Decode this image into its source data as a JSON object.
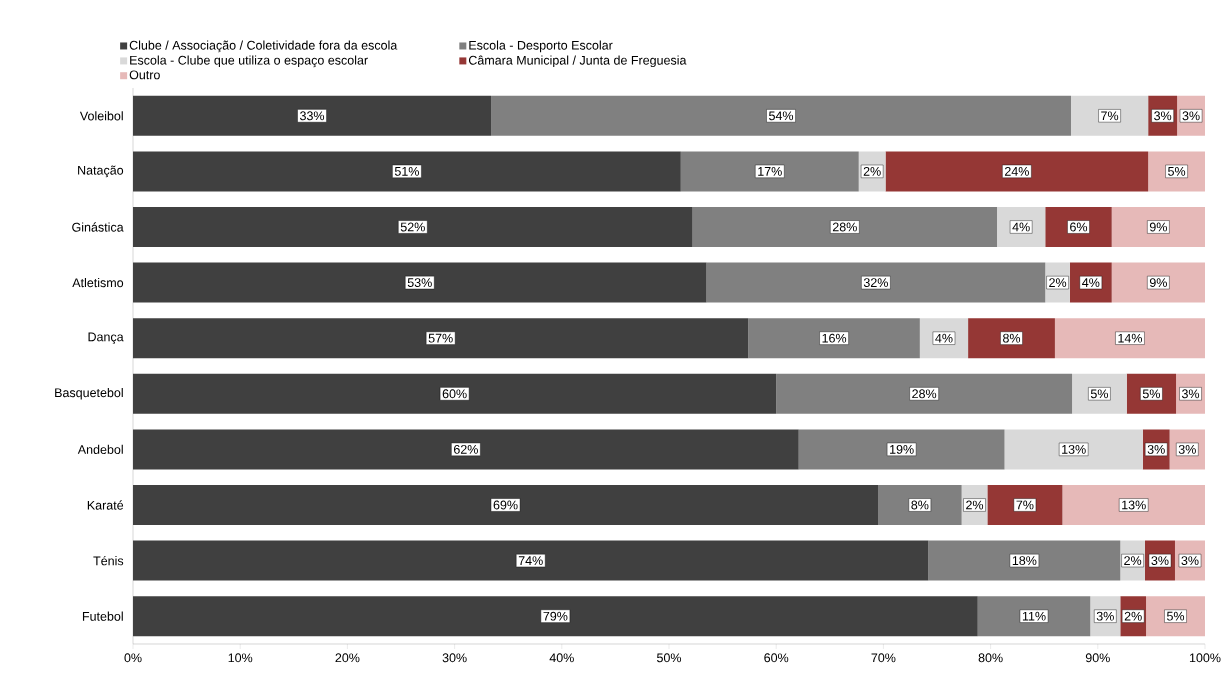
{
  "chart_data": {
    "type": "bar",
    "orientation": "horizontal",
    "stacked": true,
    "legend": "top",
    "categories": [
      "Voleibol",
      "Natação",
      "Ginástica",
      "Atletismo",
      "Dança",
      "Basquetebol",
      "Andebol",
      "Karaté",
      "Ténis",
      "Futebol"
    ],
    "series": [
      {
        "name": "Clube / Associação / Coletividade fora da escola",
        "color": "#404040",
        "values": [
          33.4,
          51.1,
          52.2,
          53.5,
          57.4,
          60.0,
          62.1,
          69.5,
          74.2,
          78.8
        ],
        "value_labels": [
          "33%",
          "51%",
          "52%",
          "53%",
          "57%",
          "60%",
          "62%",
          "69%",
          "74%",
          "79%"
        ]
      },
      {
        "name": "Escola - Desporto Escolar",
        "color": "#808080",
        "values": [
          54.1,
          16.6,
          28.4,
          31.6,
          16.0,
          27.6,
          19.2,
          7.8,
          17.9,
          10.5
        ],
        "value_labels": [
          "54%",
          "17%",
          "28%",
          "32%",
          "16%",
          "28%",
          "19%",
          "8%",
          "18%",
          "11%"
        ]
      },
      {
        "name": "Escola - Clube que utiliza o espaço escolar",
        "color": "#d9d9d9",
        "values": [
          7.2,
          2.5,
          4.5,
          2.3,
          4.5,
          5.1,
          12.9,
          2.4,
          2.3,
          2.8
        ],
        "value_labels": [
          "7%",
          "2%",
          "4%",
          "2%",
          "4%",
          "5%",
          "13%",
          "2%",
          "2%",
          "3%"
        ]
      },
      {
        "name": "Câmara Municipal / Junta de Freguesia",
        "color": "#953735",
        "values": [
          2.7,
          24.5,
          6.2,
          3.9,
          8.1,
          4.6,
          2.5,
          7.0,
          2.8,
          2.4
        ],
        "value_labels": [
          "3%",
          "24%",
          "6%",
          "4%",
          "8%",
          "5%",
          "3%",
          "7%",
          "3%",
          "2%"
        ]
      },
      {
        "name": "Outro",
        "color": "#e6b9b8",
        "values": [
          2.6,
          5.3,
          8.7,
          8.7,
          14.0,
          2.7,
          3.3,
          13.3,
          2.8,
          5.5
        ],
        "value_labels": [
          "3%",
          "5%",
          "9%",
          "9%",
          "14%",
          "3%",
          "3%",
          "13%",
          "3%",
          "5%"
        ]
      }
    ],
    "xlim": [
      0,
      100
    ],
    "xticks": [
      {
        "value": 0,
        "label": "0%"
      },
      {
        "value": 10,
        "label": "10%"
      },
      {
        "value": 20,
        "label": "20%"
      },
      {
        "value": 30,
        "label": "30%"
      },
      {
        "value": 40,
        "label": "40%"
      },
      {
        "value": 50,
        "label": "50%"
      },
      {
        "value": 60,
        "label": "60%"
      },
      {
        "value": 70,
        "label": "70%"
      },
      {
        "value": 80,
        "label": "80%"
      },
      {
        "value": 90,
        "label": "90%"
      },
      {
        "value": 100,
        "label": "100%"
      }
    ]
  }
}
